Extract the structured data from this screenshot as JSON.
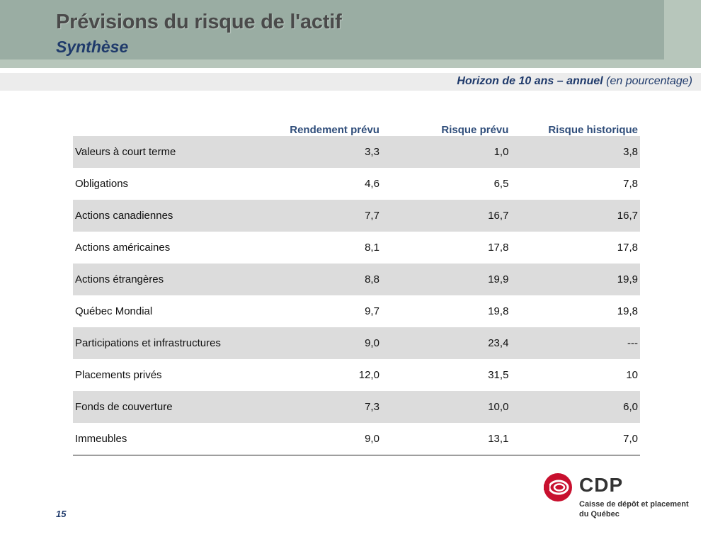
{
  "header": {
    "title": "Prévisions du risque de l'actif",
    "subtitle": "Synthèse"
  },
  "horizon": {
    "main": "Horizon de 10 ans – annuel",
    "note": "(en pourcentage)"
  },
  "table": {
    "columns": [
      "",
      "Rendement prévu",
      "Risque prévu",
      "Risque historique"
    ],
    "rows": [
      {
        "label": "Valeurs à court terme",
        "rendement": "3,3",
        "risque": "1,0",
        "historique": "3,8"
      },
      {
        "label": "Obligations",
        "rendement": "4,6",
        "risque": "6,5",
        "historique": "7,8"
      },
      {
        "label": "Actions canadiennes",
        "rendement": "7,7",
        "risque": "16,7",
        "historique": "16,7"
      },
      {
        "label": "Actions américaines",
        "rendement": "8,1",
        "risque": "17,8",
        "historique": "17,8"
      },
      {
        "label": "Actions étrangères",
        "rendement": "8,8",
        "risque": "19,9",
        "historique": "19,9"
      },
      {
        "label": "Québec Mondial",
        "rendement": "9,7",
        "risque": "19,8",
        "historique": "19,8"
      },
      {
        "label": "Participations et infrastructures",
        "rendement": "9,0",
        "risque": "23,4",
        "historique": "---"
      },
      {
        "label": "Placements privés",
        "rendement": "12,0",
        "risque": "31,5",
        "historique": "10"
      },
      {
        "label": "Fonds de couverture",
        "rendement": "7,3",
        "risque": "10,0",
        "historique": "6,0"
      },
      {
        "label": "Immeubles",
        "rendement": "9,0",
        "risque": "13,1",
        "historique": "7,0"
      }
    ]
  },
  "logo": {
    "wordmark": "CDP",
    "line1": "Caisse de dépôt et placement",
    "line2": "du Québec",
    "mark_color": "#c8102e"
  },
  "footer": {
    "page_number": "15"
  },
  "colors": {
    "header_band": "#9aada3",
    "header_accent": "#b7c6bb",
    "title_text": "#4a4a4a",
    "navy": "#1f3a6b",
    "row_shade": "#dcdcdc"
  }
}
